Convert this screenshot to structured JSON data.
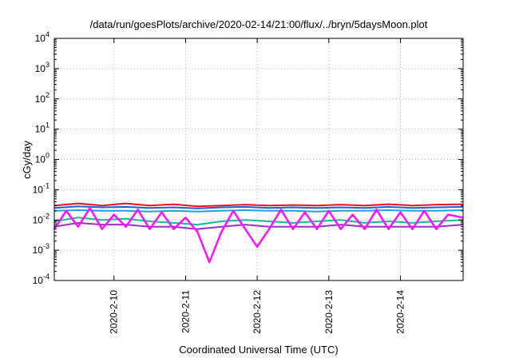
{
  "chart_data": {
    "type": "line",
    "title": "/data/run/goesPlots/archive/2020-02-14/21:00/flux/../bryn/5daysMoon.plot",
    "xlabel": "Coordinated Universal Time (UTC)",
    "ylabel": "cGy/day",
    "yscale": "log",
    "ylim": [
      0.0001,
      10000
    ],
    "y_ticks": [
      {
        "value": 0.0001,
        "base": "10",
        "exp": "-4"
      },
      {
        "value": 0.001,
        "base": "10",
        "exp": "-3"
      },
      {
        "value": 0.01,
        "base": "10",
        "exp": "-2"
      },
      {
        "value": 0.1,
        "base": "10",
        "exp": "-1"
      },
      {
        "value": 1,
        "base": "10",
        "exp": "0"
      },
      {
        "value": 10,
        "base": "10",
        "exp": "1"
      },
      {
        "value": 100,
        "base": "10",
        "exp": "2"
      },
      {
        "value": 1000,
        "base": "10",
        "exp": "3"
      },
      {
        "value": 10000,
        "base": "10",
        "exp": "4"
      }
    ],
    "xlim": [
      "2020-02-09 04:00",
      "2020-02-14 21:00"
    ],
    "x_ticks": [
      "2020-2-10",
      "2020-2-11",
      "2020-2-12",
      "2020-2-13",
      "2020-2-14"
    ],
    "grid": true,
    "series": [
      {
        "color": "#ee1111",
        "x": [
          "2020-02-09 04:00",
          "2020-02-09 12:00",
          "2020-02-09 20:00",
          "2020-02-10 04:00",
          "2020-02-10 12:00",
          "2020-02-10 20:00",
          "2020-02-11 04:00",
          "2020-02-11 12:00",
          "2020-02-11 20:00",
          "2020-02-12 04:00",
          "2020-02-12 12:00",
          "2020-02-12 20:00",
          "2020-02-13 04:00",
          "2020-02-13 12:00",
          "2020-02-13 20:00",
          "2020-02-14 04:00",
          "2020-02-14 12:00",
          "2020-02-14 21:00"
        ],
        "values": [
          0.03,
          0.035,
          0.03,
          0.035,
          0.03,
          0.033,
          0.028,
          0.03,
          0.032,
          0.03,
          0.031,
          0.03,
          0.032,
          0.03,
          0.033,
          0.03,
          0.032,
          0.033
        ]
      },
      {
        "color": "#1f5fd6",
        "x": [
          "2020-02-09 04:00",
          "2020-02-09 12:00",
          "2020-02-09 20:00",
          "2020-02-10 04:00",
          "2020-02-10 12:00",
          "2020-02-10 20:00",
          "2020-02-11 04:00",
          "2020-02-11 12:00",
          "2020-02-11 20:00",
          "2020-02-12 04:00",
          "2020-02-12 12:00",
          "2020-02-12 20:00",
          "2020-02-13 04:00",
          "2020-02-13 12:00",
          "2020-02-13 20:00",
          "2020-02-14 04:00",
          "2020-02-14 12:00",
          "2020-02-14 21:00"
        ],
        "values": [
          0.025,
          0.028,
          0.026,
          0.027,
          0.025,
          0.026,
          0.024,
          0.026,
          0.027,
          0.025,
          0.026,
          0.025,
          0.026,
          0.025,
          0.027,
          0.025,
          0.026,
          0.027
        ]
      },
      {
        "color": "#1ca0e0",
        "x": [
          "2020-02-09 04:00",
          "2020-02-09 12:00",
          "2020-02-09 20:00",
          "2020-02-10 04:00",
          "2020-02-10 12:00",
          "2020-02-10 20:00",
          "2020-02-11 04:00",
          "2020-02-11 12:00",
          "2020-02-11 20:00",
          "2020-02-12 04:00",
          "2020-02-12 12:00",
          "2020-02-12 20:00",
          "2020-02-13 04:00",
          "2020-02-13 12:00",
          "2020-02-13 20:00",
          "2020-02-14 04:00",
          "2020-02-14 12:00",
          "2020-02-14 21:00"
        ],
        "values": [
          0.02,
          0.021,
          0.02,
          0.02,
          0.019,
          0.02,
          0.019,
          0.02,
          0.021,
          0.02,
          0.02,
          0.019,
          0.02,
          0.02,
          0.021,
          0.02,
          0.02,
          0.021
        ]
      },
      {
        "color": "#1ab89a",
        "x": [
          "2020-02-09 04:00",
          "2020-02-09 12:00",
          "2020-02-09 20:00",
          "2020-02-10 04:00",
          "2020-02-10 12:00",
          "2020-02-10 20:00",
          "2020-02-11 04:00",
          "2020-02-11 12:00",
          "2020-02-11 20:00",
          "2020-02-12 04:00",
          "2020-02-12 12:00",
          "2020-02-12 20:00",
          "2020-02-13 04:00",
          "2020-02-13 12:00",
          "2020-02-13 20:00",
          "2020-02-14 04:00",
          "2020-02-14 12:00",
          "2020-02-14 21:00"
        ],
        "values": [
          0.009,
          0.012,
          0.01,
          0.011,
          0.009,
          0.008,
          0.007,
          0.009,
          0.01,
          0.009,
          0.008,
          0.009,
          0.01,
          0.008,
          0.009,
          0.008,
          0.009,
          0.01
        ]
      },
      {
        "color": "#9a30c0",
        "x": [
          "2020-02-09 04:00",
          "2020-02-09 12:00",
          "2020-02-09 20:00",
          "2020-02-10 04:00",
          "2020-02-10 12:00",
          "2020-02-10 20:00",
          "2020-02-11 04:00",
          "2020-02-11 12:00",
          "2020-02-11 20:00",
          "2020-02-12 04:00",
          "2020-02-12 12:00",
          "2020-02-12 20:00",
          "2020-02-13 04:00",
          "2020-02-13 12:00",
          "2020-02-13 20:00",
          "2020-02-14 04:00",
          "2020-02-14 12:00",
          "2020-02-14 21:00"
        ],
        "values": [
          0.006,
          0.008,
          0.007,
          0.007,
          0.006,
          0.006,
          0.005,
          0.006,
          0.007,
          0.006,
          0.006,
          0.006,
          0.007,
          0.006,
          0.006,
          0.006,
          0.006,
          0.007
        ]
      },
      {
        "color": "#ff10ff",
        "x": [
          "2020-02-09 04:00",
          "2020-02-09 08:00",
          "2020-02-09 12:00",
          "2020-02-09 16:00",
          "2020-02-09 20:00",
          "2020-02-10 00:00",
          "2020-02-10 04:00",
          "2020-02-10 08:00",
          "2020-02-10 12:00",
          "2020-02-10 16:00",
          "2020-02-10 20:00",
          "2020-02-11 00:00",
          "2020-02-11 04:00",
          "2020-02-11 08:00",
          "2020-02-11 12:00",
          "2020-02-11 16:00",
          "2020-02-11 20:00",
          "2020-02-12 00:00",
          "2020-02-12 04:00",
          "2020-02-12 08:00",
          "2020-02-12 12:00",
          "2020-02-12 16:00",
          "2020-02-12 20:00",
          "2020-02-13 00:00",
          "2020-02-13 04:00",
          "2020-02-13 08:00",
          "2020-02-13 12:00",
          "2020-02-13 16:00",
          "2020-02-13 20:00",
          "2020-02-14 00:00",
          "2020-02-14 04:00",
          "2020-02-14 08:00",
          "2020-02-14 12:00",
          "2020-02-14 16:00",
          "2020-02-14 21:00"
        ],
        "values": [
          0.005,
          0.02,
          0.006,
          0.025,
          0.005,
          0.015,
          0.006,
          0.022,
          0.005,
          0.018,
          0.005,
          0.012,
          0.004,
          0.0004,
          0.004,
          0.02,
          0.005,
          0.0013,
          0.005,
          0.022,
          0.005,
          0.018,
          0.005,
          0.02,
          0.005,
          0.015,
          0.005,
          0.022,
          0.005,
          0.018,
          0.005,
          0.02,
          0.005,
          0.015,
          0.012
        ]
      }
    ]
  }
}
